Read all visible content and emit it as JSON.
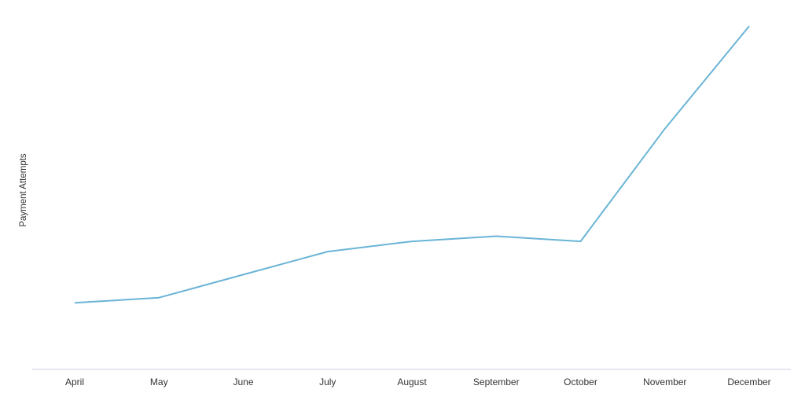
{
  "chart_data": {
    "type": "line",
    "title": "",
    "xlabel": "",
    "ylabel": "Payment Attempts",
    "categories": [
      "April",
      "May",
      "June",
      "July",
      "August",
      "September",
      "October",
      "November",
      "December"
    ],
    "series": [
      {
        "values": [
          18,
          19,
          23.5,
          28,
          30,
          31,
          30,
          52,
          72
        ]
      }
    ],
    "ylim": [
      5,
      74.5
    ],
    "grid": false,
    "legend": "none",
    "colors": {
      "line": "#6ab4d6",
      "axis": "#c9cde6",
      "text": "#333333"
    }
  }
}
